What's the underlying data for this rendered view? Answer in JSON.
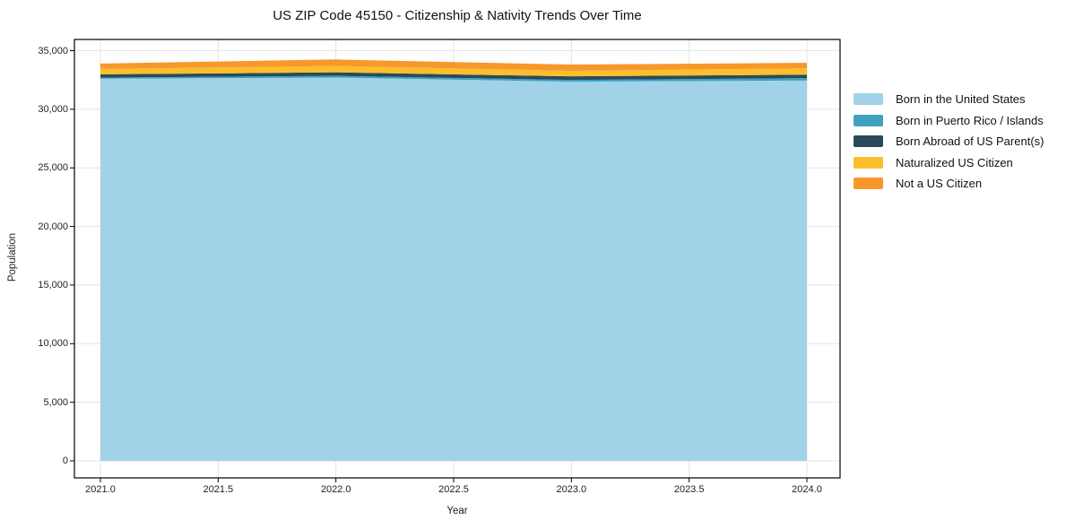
{
  "title": "US ZIP Code 45150 - Citizenship & Nativity Trends Over Time",
  "chart_data": {
    "type": "area",
    "stacked": true,
    "title": "US ZIP Code 45150 - Citizenship & Nativity Trends Over Time",
    "xlabel": "Year",
    "ylabel": "Population",
    "xlim": [
      2021,
      2024
    ],
    "ylim": [
      0,
      35000
    ],
    "grid": true,
    "legend_position": "right-outside",
    "x": [
      2021,
      2022,
      2023,
      2024
    ],
    "series": [
      {
        "name": "Born in the United States",
        "color": "#a2d2e7",
        "values": [
          32600,
          32700,
          32350,
          32450
        ]
      },
      {
        "name": "Born in Puerto Rico / Islands",
        "color": "#3fa3c0",
        "values": [
          100,
          150,
          150,
          200
        ]
      },
      {
        "name": "Born Abroad of US Parent(s)",
        "color": "#2a4a5c",
        "values": [
          280,
          300,
          310,
          300
        ]
      },
      {
        "name": "Naturalized US Citizen",
        "color": "#fcbf2c",
        "values": [
          460,
          540,
          470,
          540
        ]
      },
      {
        "name": "Not a US Citizen",
        "color": "#f8982b",
        "values": [
          460,
          560,
          530,
          470
        ]
      }
    ],
    "x_ticks": [
      {
        "value": 2021.0,
        "label": "2021.0"
      },
      {
        "value": 2021.5,
        "label": "2021.5"
      },
      {
        "value": 2022.0,
        "label": "2022.0"
      },
      {
        "value": 2022.5,
        "label": "2022.5"
      },
      {
        "value": 2023.0,
        "label": "2023.0"
      },
      {
        "value": 2023.5,
        "label": "2023.5"
      },
      {
        "value": 2024.0,
        "label": "2024.0"
      }
    ],
    "y_ticks": [
      {
        "value": 0,
        "label": "0"
      },
      {
        "value": 5000,
        "label": "5,000"
      },
      {
        "value": 10000,
        "label": "10,000"
      },
      {
        "value": 15000,
        "label": "15,000"
      },
      {
        "value": 20000,
        "label": "20,000"
      },
      {
        "value": 25000,
        "label": "25,000"
      },
      {
        "value": 30000,
        "label": "30,000"
      },
      {
        "value": 35000,
        "label": "35,000"
      }
    ],
    "grid_color": "#e4e4e4",
    "frame_color": "#000000"
  }
}
